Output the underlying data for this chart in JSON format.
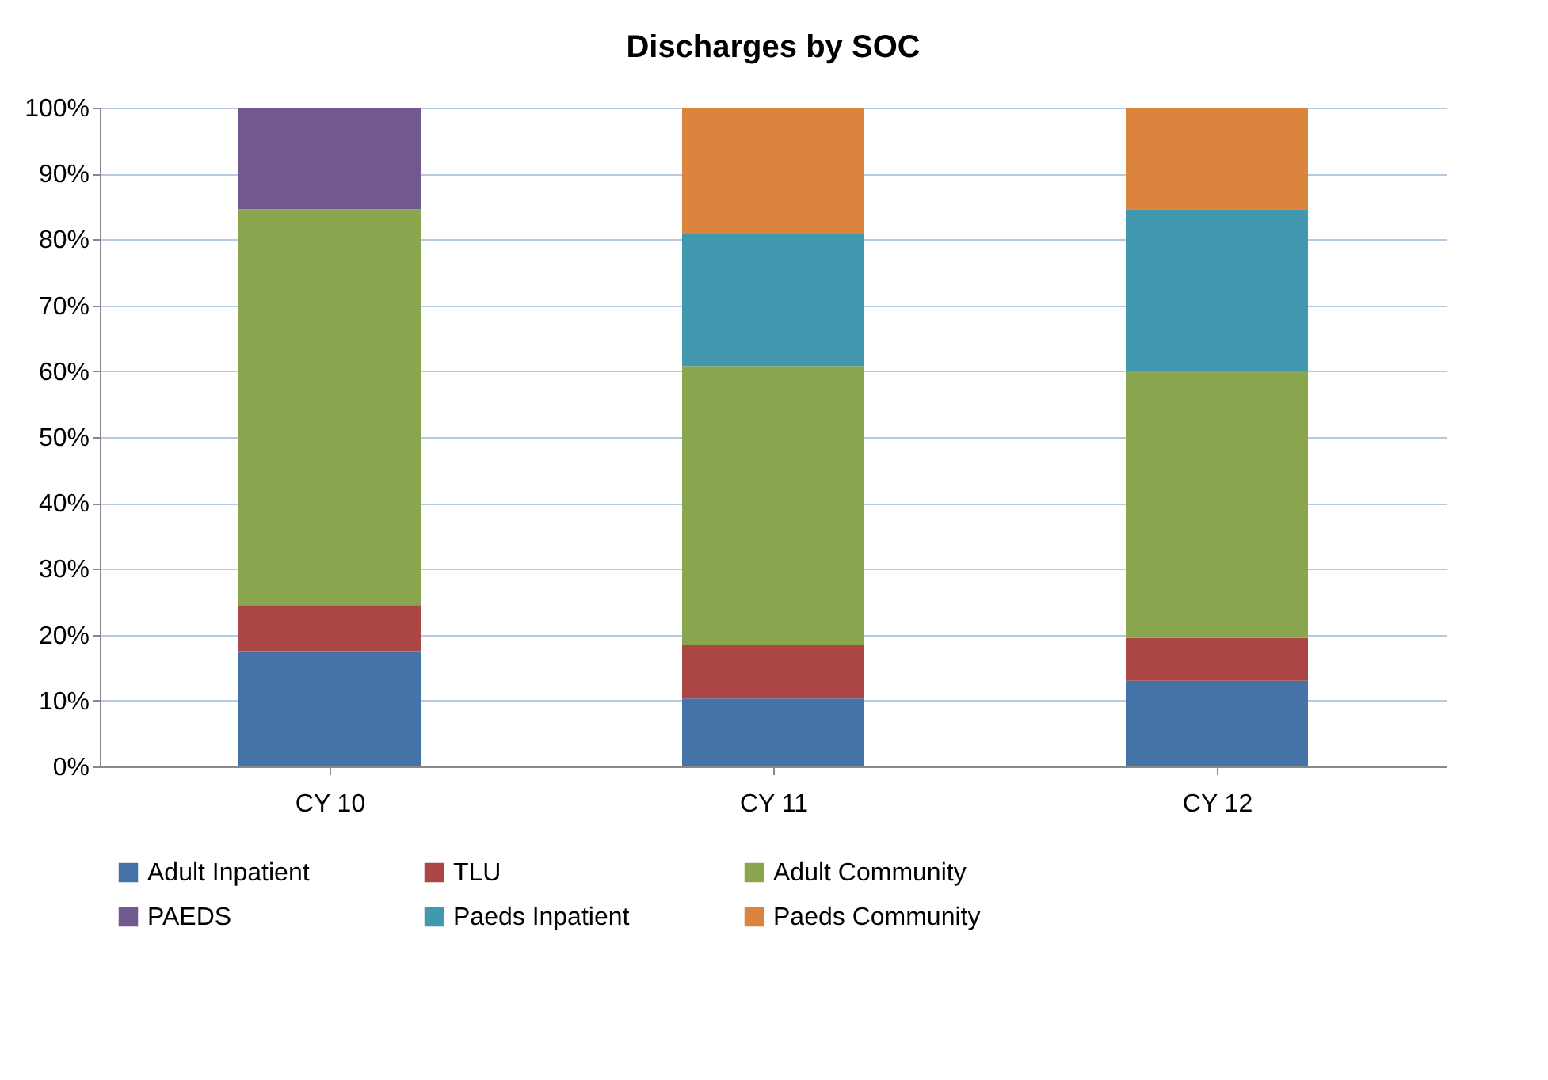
{
  "chart_data": {
    "type": "bar",
    "title": "Discharges by SOC",
    "stacked": true,
    "categories": [
      "CY 10",
      "CY 11",
      "CY 12"
    ],
    "series": [
      {
        "name": "Adult Inpatient",
        "color": "#4572a7",
        "values": [
          17.5,
          10.3,
          13.0
        ]
      },
      {
        "name": "TLU",
        "color": "#aa4643",
        "values": [
          7.0,
          8.2,
          6.5
        ]
      },
      {
        "name": "Adult Community",
        "color": "#89a54e",
        "values": [
          60.1,
          42.3,
          40.6
        ]
      },
      {
        "name": "PAEDS",
        "color": "#71588f",
        "values": [
          15.4,
          null,
          null
        ]
      },
      {
        "name": "Paeds Inpatient",
        "color": "#4198af",
        "values": [
          null,
          20.0,
          24.5
        ]
      },
      {
        "name": "Paeds Community",
        "color": "#db843d",
        "values": [
          null,
          19.2,
          15.4
        ]
      }
    ],
    "ylim": [
      0,
      100
    ],
    "yticks": [
      {
        "value": 0,
        "label": "0%"
      },
      {
        "value": 10,
        "label": "10%"
      },
      {
        "value": 20,
        "label": "20%"
      },
      {
        "value": 30,
        "label": "30%"
      },
      {
        "value": 40,
        "label": "40%"
      },
      {
        "value": 50,
        "label": "50%"
      },
      {
        "value": 60,
        "label": "60%"
      },
      {
        "value": 70,
        "label": "70%"
      },
      {
        "value": 80,
        "label": "80%"
      },
      {
        "value": 90,
        "label": "90%"
      },
      {
        "value": 100,
        "label": "100%"
      }
    ],
    "grid": "y",
    "legend": "bottom"
  }
}
